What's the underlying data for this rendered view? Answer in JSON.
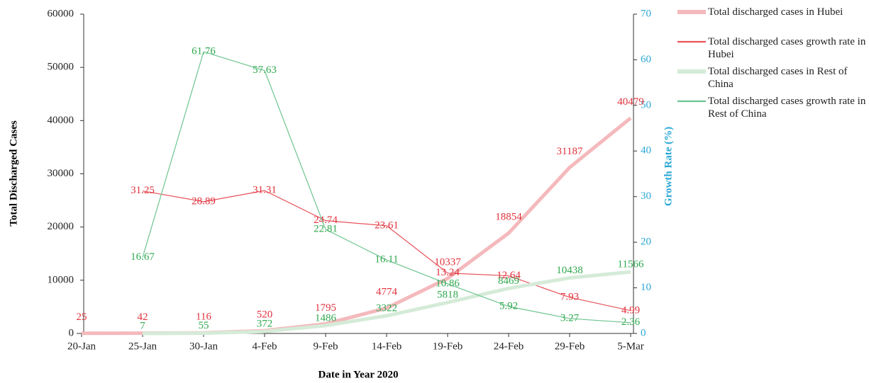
{
  "chart_data": {
    "type": "line",
    "x_label": "Date in Year 2020",
    "y_label": "Total Discharged Cases",
    "y2_label": "Growth Rate (%)",
    "categories": [
      "20-Jan",
      "25-Jan",
      "30-Jan",
      "4-Feb",
      "9-Feb",
      "14-Feb",
      "19-Feb",
      "24-Feb",
      "29-Feb",
      "5-Mar"
    ],
    "series": [
      {
        "name": "Total discharged cases in Hubei",
        "color": "#f4b9bc",
        "values": [
          25,
          42,
          116,
          520,
          1795,
          4774,
          10337,
          18854,
          31187,
          40479
        ]
      },
      {
        "name": "Total discharged cases growth rate in Hubei",
        "color": "#e8535b",
        "axis": "y2",
        "values": [
          null,
          31.25,
          28.89,
          31.31,
          24.74,
          23.61,
          13.24,
          12.64,
          7.93,
          4.99
        ]
      },
      {
        "name": "Total discharged cases in Rest of China",
        "color": "#d5ebd8",
        "values": [
          null,
          7,
          55,
          372,
          1486,
          3322,
          5818,
          8469,
          10438,
          11566
        ]
      },
      {
        "name": "Total discharged cases growth rate in Rest of China",
        "color": "#6cc48f",
        "axis": "y2",
        "values": [
          null,
          16.67,
          61.76,
          57.63,
          22.81,
          16.11,
          10.86,
          5.92,
          3.27,
          2.36
        ]
      }
    ],
    "ylim": [
      0,
      60000
    ],
    "yticks": [
      0,
      10000,
      20000,
      30000,
      40000,
      50000,
      60000
    ],
    "y2lim": [
      0,
      70
    ],
    "y2ticks": [
      0,
      10,
      20,
      30,
      40,
      50,
      60,
      70
    ],
    "y2_color": "#2aa7d6",
    "grid": false,
    "legend": "right"
  }
}
